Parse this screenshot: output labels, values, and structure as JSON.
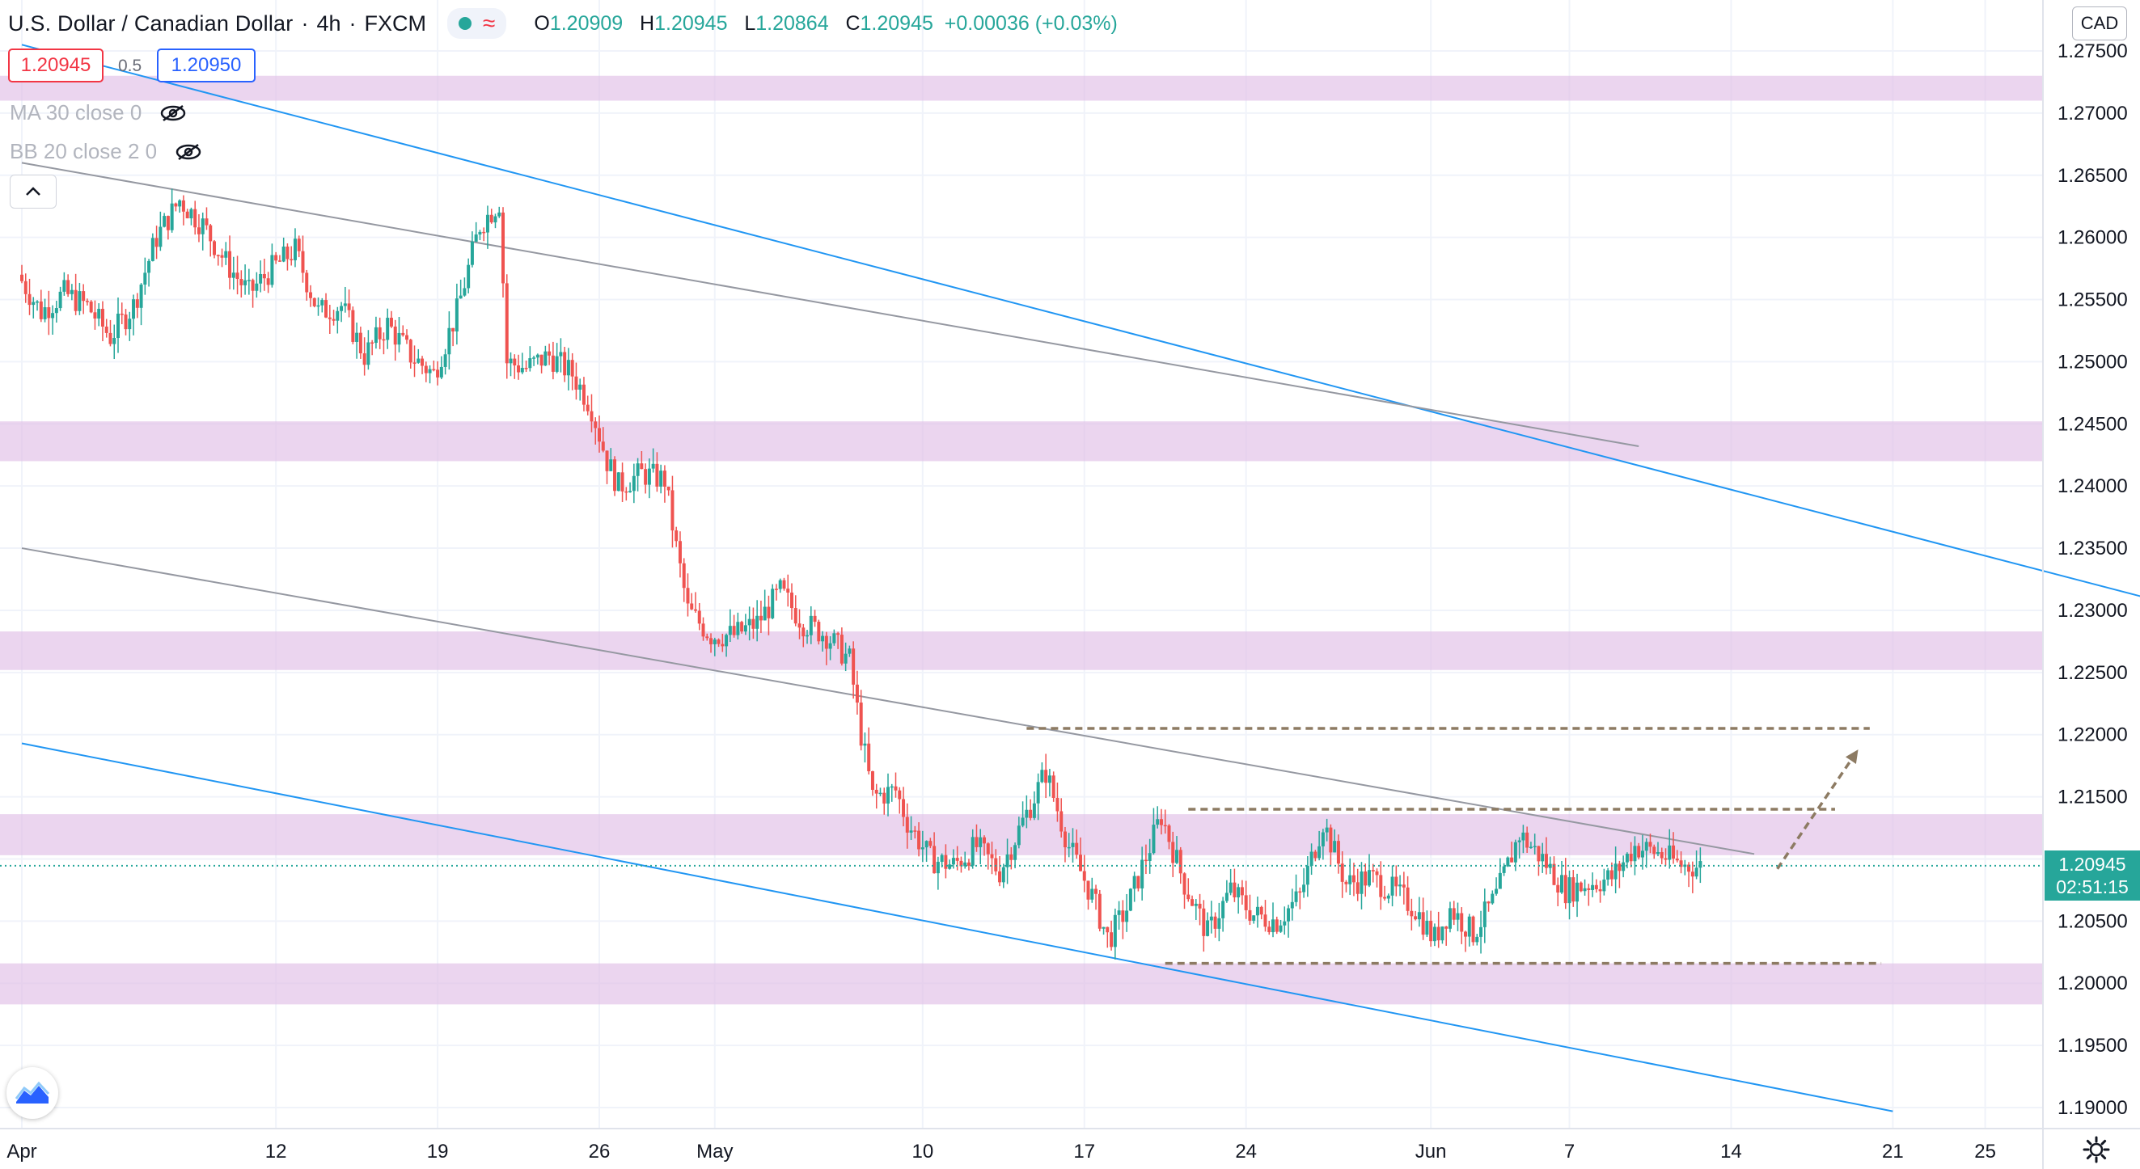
{
  "header": {
    "symbol": "U.S. Dollar / Canadian Dollar",
    "interval": "4h",
    "source": "FXCM",
    "ohlc": {
      "o_label": "O",
      "o": "1.20909",
      "h_label": "H",
      "h": "1.20945",
      "l_label": "L",
      "l": "1.20864",
      "c_label": "C",
      "c": "1.20945",
      "change": "+0.00036 (+0.03%)"
    }
  },
  "trade": {
    "sell": "1.20945",
    "spread": "0.5",
    "buy": "1.20950"
  },
  "indicators": [
    {
      "label": "MA 30 close 0"
    },
    {
      "label": "BB 20 close 2 0"
    }
  ],
  "currency": "CAD",
  "last_price": {
    "price": "1.20945",
    "countdown": "02:51:15"
  },
  "colors": {
    "up": "#26a69a",
    "down": "#ef5350",
    "zone": "#e1bee7",
    "channel": "#2196f3",
    "trend": "#9598a1",
    "projection": "#8d7b63"
  },
  "icons": [
    "live-dot-icon",
    "wave-icon",
    "eye-off-icon",
    "chevron-up-icon",
    "tradingview-logo-icon",
    "gear-icon"
  ],
  "chart_data": {
    "type": "candlestick",
    "ylim": [
      1.1875,
      1.2775
    ],
    "y_ticks": [
      "1.27500",
      "1.27000",
      "1.26500",
      "1.26000",
      "1.25500",
      "1.25000",
      "1.24500",
      "1.24000",
      "1.23500",
      "1.23000",
      "1.22500",
      "1.22000",
      "1.21500",
      "1.21000",
      "1.20500",
      "1.20000",
      "1.19500",
      "1.19000"
    ],
    "y_tick_values": [
      1.275,
      1.27,
      1.265,
      1.26,
      1.255,
      1.25,
      1.245,
      1.24,
      1.235,
      1.23,
      1.225,
      1.22,
      1.215,
      1.21,
      1.205,
      1.2,
      1.195,
      1.19
    ],
    "x_ticks": [
      {
        "label": "Apr",
        "day": 0
      },
      {
        "label": "12",
        "day": 11
      },
      {
        "label": "19",
        "day": 18
      },
      {
        "label": "26",
        "day": 25
      },
      {
        "label": "May",
        "day": 30
      },
      {
        "label": "10",
        "day": 39
      },
      {
        "label": "17",
        "day": 46
      },
      {
        "label": "24",
        "day": 53
      },
      {
        "label": "Jun",
        "day": 61
      },
      {
        "label": "7",
        "day": 67
      },
      {
        "label": "14",
        "day": 74
      },
      {
        "label": "21",
        "day": 81
      },
      {
        "label": "25",
        "day": 85
      }
    ],
    "path_points": [
      {
        "day": 0,
        "price": 1.257
      },
      {
        "day": 1,
        "price": 1.254
      },
      {
        "day": 2,
        "price": 1.2555
      },
      {
        "day": 3,
        "price": 1.2545
      },
      {
        "day": 4,
        "price": 1.252
      },
      {
        "day": 5,
        "price": 1.2545
      },
      {
        "day": 6,
        "price": 1.26
      },
      {
        "day": 7,
        "price": 1.263
      },
      {
        "day": 8,
        "price": 1.261
      },
      {
        "day": 9,
        "price": 1.258
      },
      {
        "day": 10,
        "price": 1.2555
      },
      {
        "day": 11,
        "price": 1.2575
      },
      {
        "day": 12,
        "price": 1.259
      },
      {
        "day": 13,
        "price": 1.254
      },
      {
        "day": 14,
        "price": 1.2545
      },
      {
        "day": 15,
        "price": 1.2505
      },
      {
        "day": 16,
        "price": 1.253
      },
      {
        "day": 17,
        "price": 1.2505
      },
      {
        "day": 18,
        "price": 1.249
      },
      {
        "day": 19,
        "price": 1.254
      },
      {
        "day": 20,
        "price": 1.261
      },
      {
        "day": 20.9,
        "price": 1.263
      },
      {
        "day": 21.1,
        "price": 1.25
      },
      {
        "day": 22,
        "price": 1.2495
      },
      {
        "day": 23,
        "price": 1.2505
      },
      {
        "day": 24,
        "price": 1.249
      },
      {
        "day": 24.8,
        "price": 1.2465
      },
      {
        "day": 25.5,
        "price": 1.242
      },
      {
        "day": 26,
        "price": 1.24
      },
      {
        "day": 27,
        "price": 1.241
      },
      {
        "day": 28,
        "price": 1.2405
      },
      {
        "day": 28.5,
        "price": 1.235
      },
      {
        "day": 29,
        "price": 1.23
      },
      {
        "day": 30,
        "price": 1.228
      },
      {
        "day": 31,
        "price": 1.228
      },
      {
        "day": 32,
        "price": 1.229
      },
      {
        "day": 33,
        "price": 1.2315
      },
      {
        "day": 34,
        "price": 1.229
      },
      {
        "day": 35,
        "price": 1.228
      },
      {
        "day": 36,
        "price": 1.226
      },
      {
        "day": 36.5,
        "price": 1.22
      },
      {
        "day": 37,
        "price": 1.215
      },
      {
        "day": 38,
        "price": 1.2155
      },
      {
        "day": 38.5,
        "price": 1.213
      },
      {
        "day": 39.5,
        "price": 1.21
      },
      {
        "day": 40.5,
        "price": 1.2095
      },
      {
        "day": 41.5,
        "price": 1.211
      },
      {
        "day": 42.5,
        "price": 1.209
      },
      {
        "day": 43.5,
        "price": 1.213
      },
      {
        "day": 44.5,
        "price": 1.217
      },
      {
        "day": 45.5,
        "price": 1.211
      },
      {
        "day": 46.5,
        "price": 1.207
      },
      {
        "day": 47.2,
        "price": 1.2035
      },
      {
        "day": 48,
        "price": 1.206
      },
      {
        "day": 49,
        "price": 1.211
      },
      {
        "day": 49.5,
        "price": 1.2135
      },
      {
        "day": 50.5,
        "price": 1.208
      },
      {
        "day": 51.5,
        "price": 1.204
      },
      {
        "day": 52.5,
        "price": 1.2075
      },
      {
        "day": 53.5,
        "price": 1.2055
      },
      {
        "day": 54.5,
        "price": 1.205
      },
      {
        "day": 55.5,
        "price": 1.207
      },
      {
        "day": 56.5,
        "price": 1.213
      },
      {
        "day": 57.5,
        "price": 1.208
      },
      {
        "day": 58.5,
        "price": 1.2085
      },
      {
        "day": 59.5,
        "price": 1.2075
      },
      {
        "day": 60.5,
        "price": 1.206
      },
      {
        "day": 61.3,
        "price": 1.2035
      },
      {
        "day": 62,
        "price": 1.206
      },
      {
        "day": 63,
        "price": 1.204
      },
      {
        "day": 64,
        "price": 1.207
      },
      {
        "day": 65,
        "price": 1.212
      },
      {
        "day": 66,
        "price": 1.21
      },
      {
        "day": 67,
        "price": 1.2075
      },
      {
        "day": 68,
        "price": 1.208
      },
      {
        "day": 69,
        "price": 1.2085
      },
      {
        "day": 70,
        "price": 1.211
      },
      {
        "day": 71,
        "price": 1.2105
      },
      {
        "day": 72,
        "price": 1.2095
      },
      {
        "day": 72.7,
        "price": 1.2094
      }
    ],
    "zones": [
      {
        "from": 1.271,
        "to": 1.273
      },
      {
        "from": 1.242,
        "to": 1.2452
      },
      {
        "from": 1.2252,
        "to": 1.2283
      },
      {
        "from": 1.2103,
        "to": 1.2136
      },
      {
        "from": 1.1983,
        "to": 1.2016
      }
    ],
    "lines": [
      {
        "kind": "channel-upper",
        "p1": {
          "day": 0,
          "price": 1.2755
        },
        "p2": {
          "day": 92,
          "price": 1.231
        }
      },
      {
        "kind": "channel-lower",
        "p1": {
          "day": 0,
          "price": 1.2193
        },
        "p2": {
          "day": 81,
          "price": 1.1897
        }
      },
      {
        "kind": "trend-upper",
        "p1": {
          "day": 0,
          "price": 1.266
        },
        "p2": {
          "day": 70,
          "price": 1.2432
        }
      },
      {
        "kind": "trend-lower",
        "p1": {
          "day": 0,
          "price": 1.235
        },
        "p2": {
          "day": 75,
          "price": 1.2104
        }
      }
    ],
    "levels": [
      {
        "price": 1.2205,
        "from_day": 43.5,
        "to_day": 80
      },
      {
        "price": 1.214,
        "from_day": 50.5,
        "to_day": 78.5
      },
      {
        "price": 1.2016,
        "from_day": 49.5,
        "to_day": 80.5
      }
    ],
    "projection": {
      "from": {
        "day": 76,
        "price": 1.2092
      },
      "to": {
        "day": 79.5,
        "price": 1.2188
      }
    },
    "last": 1.20945
  }
}
